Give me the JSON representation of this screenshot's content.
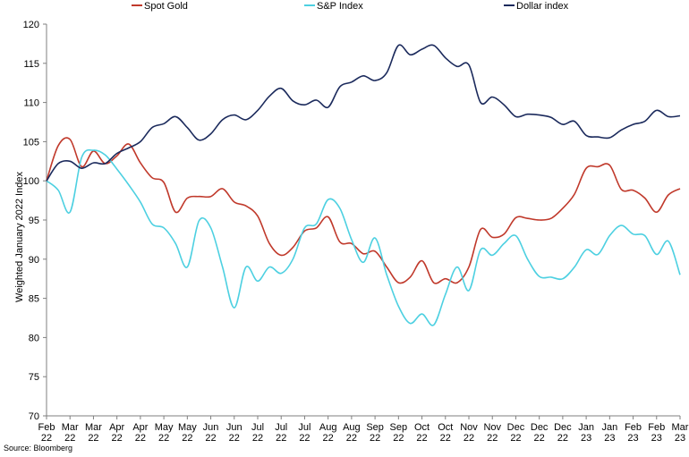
{
  "source_text": "Source: Bloomberg",
  "chart_data": {
    "type": "line",
    "title": "",
    "xlabel": "",
    "ylabel": "Weighted January 2022 Index",
    "ylim": [
      70,
      120
    ],
    "yticks": [
      70,
      75,
      80,
      85,
      90,
      95,
      100,
      105,
      110,
      115,
      120
    ],
    "grid": false,
    "legend_position": "top",
    "x_labels": [
      [
        "Feb",
        "22"
      ],
      [
        "Mar",
        "22"
      ],
      [
        "Mar",
        "22"
      ],
      [
        "Apr",
        "22"
      ],
      [
        "Apr",
        "22"
      ],
      [
        "May",
        "22"
      ],
      [
        "May",
        "22"
      ],
      [
        "Jun",
        "22"
      ],
      [
        "Jun",
        "22"
      ],
      [
        "Jul",
        "22"
      ],
      [
        "Jul",
        "22"
      ],
      [
        "Jul",
        "22"
      ],
      [
        "Aug",
        "22"
      ],
      [
        "Aug",
        "22"
      ],
      [
        "Sep",
        "22"
      ],
      [
        "Sep",
        "22"
      ],
      [
        "Oct",
        "22"
      ],
      [
        "Oct",
        "22"
      ],
      [
        "Nov",
        "22"
      ],
      [
        "Nov",
        "22"
      ],
      [
        "Dec",
        "22"
      ],
      [
        "Dec",
        "22"
      ],
      [
        "Dec",
        "22"
      ],
      [
        "Jan",
        "23"
      ],
      [
        "Jan",
        "23"
      ],
      [
        "Feb",
        "23"
      ],
      [
        "Feb",
        "23"
      ],
      [
        "Mar",
        "23"
      ]
    ],
    "series": [
      {
        "name": "Spot Gold",
        "color": "#c0392b",
        "values": [
          100,
          104.5,
          105.3,
          101.8,
          103.8,
          102.2,
          103.2,
          104.7,
          102.3,
          100.4,
          99.8,
          96.0,
          97.8,
          98.0,
          98.0,
          99.0,
          97.3,
          96.8,
          95.5,
          92.0,
          90.5,
          91.5,
          93.6,
          94.0,
          95.4,
          92.2,
          92.0,
          90.7,
          91.0,
          89.0,
          87.0,
          87.7,
          89.8,
          87.0,
          87.5,
          87.0,
          89.0,
          93.8,
          92.8,
          93.2,
          95.3,
          95.2,
          95.0,
          95.2,
          96.5,
          98.3,
          101.6,
          101.8,
          102.0,
          98.9,
          98.8,
          97.8,
          96.0,
          98.2,
          99.0
        ]
      },
      {
        "name": "S&P Index",
        "color": "#4dd0e1",
        "values": [
          100,
          98.8,
          96.0,
          103.0,
          103.9,
          103.3,
          101.5,
          99.5,
          97.3,
          94.5,
          94.0,
          92.0,
          89.0,
          94.9,
          94.0,
          89.0,
          83.8,
          89.0,
          87.2,
          89.0,
          88.2,
          90.0,
          94.0,
          94.5,
          97.6,
          96.5,
          92.5,
          89.6,
          92.7,
          88.0,
          84.0,
          81.8,
          83.0,
          81.6,
          85.5,
          89.0,
          86.0,
          91.2,
          90.5,
          92.0,
          93.0,
          90.0,
          87.8,
          87.7,
          87.5,
          89.0,
          91.2,
          90.6,
          93.0,
          94.3,
          93.2,
          93.0,
          90.6,
          92.3,
          88.0
        ]
      },
      {
        "name": "Dollar index",
        "color": "#1b2a5c",
        "values": [
          100,
          102.2,
          102.5,
          101.6,
          102.3,
          102.2,
          103.5,
          104.2,
          105.0,
          106.8,
          107.3,
          108.2,
          106.8,
          105.2,
          106.0,
          107.8,
          108.4,
          107.8,
          109.0,
          110.8,
          111.8,
          110.2,
          109.7,
          110.3,
          109.4,
          112.0,
          112.6,
          113.4,
          112.8,
          113.8,
          117.3,
          116.1,
          116.8,
          117.3,
          115.7,
          114.6,
          114.8,
          110.0,
          110.7,
          109.7,
          108.2,
          108.5,
          108.4,
          108.1,
          107.2,
          107.6,
          105.8,
          105.6,
          105.5,
          106.5,
          107.2,
          107.6,
          109.0,
          108.2,
          108.3
        ]
      }
    ]
  }
}
